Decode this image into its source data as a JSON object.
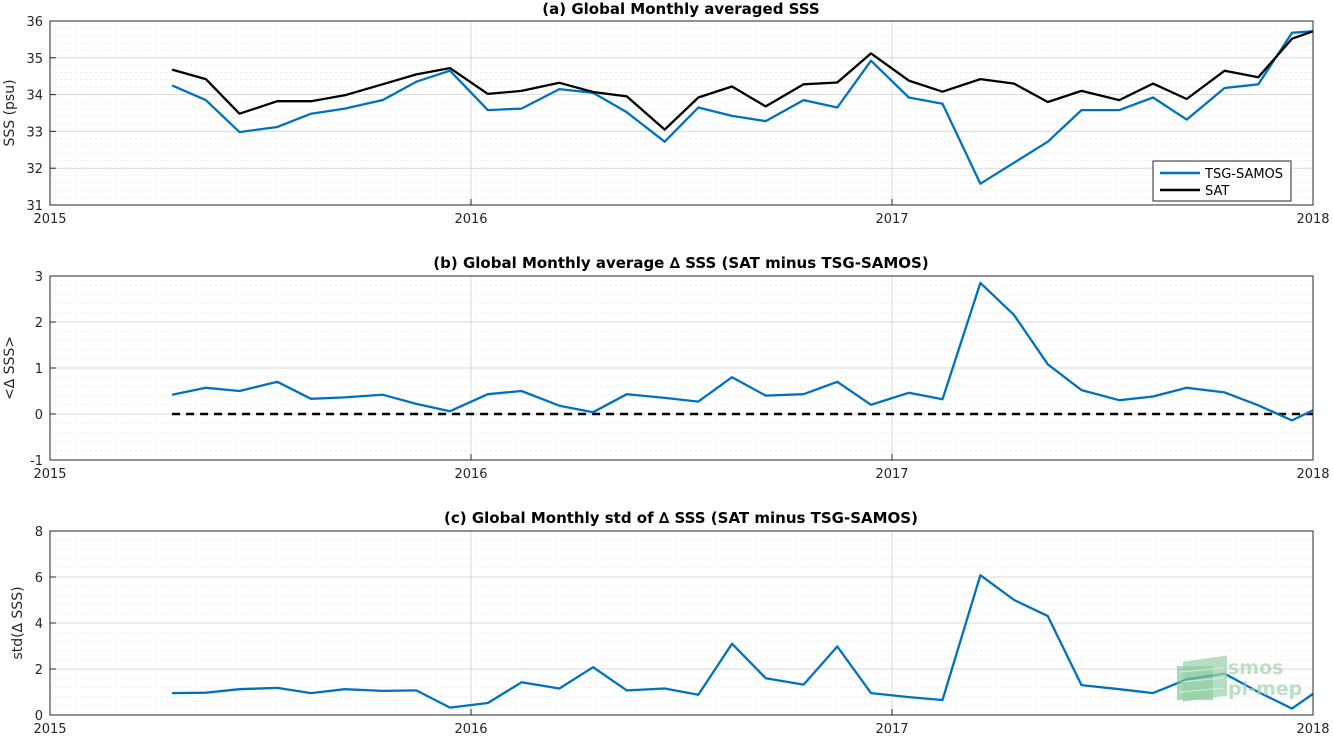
{
  "colors": {
    "tsg": "#0072BD",
    "sat": "#000000",
    "zero_line": "#000000",
    "watermark": "#8cc9a0"
  },
  "watermark": {
    "line1": "smos",
    "line2": "pi-mep"
  },
  "chart_data": [
    {
      "type": "line",
      "title": "(a) Global Monthly averaged SSS",
      "ylabel": "SSS (psu)",
      "xlim": [
        2015,
        2018
      ],
      "ylim": [
        31,
        36
      ],
      "xticks": [
        2015,
        2016,
        2017,
        2018
      ],
      "xtick_labels": [
        "2015",
        "2016",
        "2017",
        "2018"
      ],
      "yticks": [
        31,
        32,
        33,
        34,
        35,
        36
      ],
      "grid": true,
      "legend": "bottom-right",
      "series": [
        {
          "name": "TSG-SAMOS",
          "color": "#0072BD",
          "x": [
            2015.29,
            2015.37,
            2015.45,
            2015.54,
            2015.62,
            2015.7,
            2015.79,
            2015.87,
            2015.95,
            2016.04,
            2016.12,
            2016.21,
            2016.29,
            2016.37,
            2016.46,
            2016.54,
            2016.62,
            2016.7,
            2016.79,
            2016.87,
            2016.95,
            2017.04,
            2017.12,
            2017.21,
            2017.29,
            2017.37,
            2017.45,
            2017.54,
            2017.62,
            2017.7,
            2017.79,
            2017.87,
            2017.95,
            2018.0
          ],
          "y": [
            34.25,
            33.85,
            32.98,
            33.12,
            33.48,
            33.62,
            33.85,
            34.35,
            34.65,
            33.58,
            33.62,
            34.15,
            34.05,
            33.52,
            32.72,
            33.65,
            33.42,
            33.28,
            33.85,
            33.65,
            34.92,
            33.92,
            33.75,
            31.58,
            32.15,
            32.72,
            33.58,
            33.58,
            33.92,
            33.32,
            34.18,
            34.28,
            35.68,
            35.72
          ]
        },
        {
          "name": "SAT",
          "color": "#000000",
          "x": [
            2015.29,
            2015.37,
            2015.45,
            2015.54,
            2015.62,
            2015.7,
            2015.79,
            2015.87,
            2015.95,
            2016.04,
            2016.12,
            2016.21,
            2016.29,
            2016.37,
            2016.46,
            2016.54,
            2016.62,
            2016.7,
            2016.79,
            2016.87,
            2016.95,
            2017.04,
            2017.12,
            2017.21,
            2017.29,
            2017.37,
            2017.45,
            2017.54,
            2017.62,
            2017.7,
            2017.79,
            2017.87,
            2017.95,
            2018.0
          ],
          "y": [
            34.68,
            34.42,
            33.48,
            33.82,
            33.82,
            33.98,
            34.28,
            34.55,
            34.72,
            34.02,
            34.1,
            34.32,
            34.07,
            33.95,
            33.05,
            33.92,
            34.22,
            33.68,
            34.28,
            34.33,
            35.12,
            34.38,
            34.08,
            34.42,
            34.3,
            33.8,
            34.1,
            33.85,
            34.3,
            33.88,
            34.65,
            34.47,
            35.52,
            35.72
          ]
        }
      ]
    },
    {
      "type": "line",
      "title": "(b) Global Monthly average ∆ SSS (SAT minus TSG-SAMOS)",
      "ylabel": "<∆ SSS>",
      "xlim": [
        2015,
        2018
      ],
      "ylim": [
        -1,
        3
      ],
      "xticks": [
        2015,
        2016,
        2017,
        2018
      ],
      "xtick_labels": [
        "2015",
        "2016",
        "2017",
        "2018"
      ],
      "yticks": [
        -1,
        0,
        1,
        2,
        3
      ],
      "grid": true,
      "reference_line": {
        "y": 0,
        "x": [
          2015.29,
          2018.0
        ],
        "style": "dashed"
      },
      "series": [
        {
          "color": "#0072BD",
          "x": [
            2015.29,
            2015.37,
            2015.45,
            2015.54,
            2015.62,
            2015.7,
            2015.79,
            2015.87,
            2015.95,
            2016.04,
            2016.12,
            2016.21,
            2016.29,
            2016.37,
            2016.46,
            2016.54,
            2016.62,
            2016.7,
            2016.79,
            2016.87,
            2016.95,
            2017.04,
            2017.12,
            2017.21,
            2017.29,
            2017.37,
            2017.45,
            2017.54,
            2017.62,
            2017.7,
            2017.79,
            2017.87,
            2017.95,
            2018.0
          ],
          "y": [
            0.42,
            0.57,
            0.5,
            0.7,
            0.33,
            0.36,
            0.42,
            0.22,
            0.06,
            0.43,
            0.5,
            0.18,
            0.04,
            0.43,
            0.35,
            0.27,
            0.8,
            0.4,
            0.43,
            0.7,
            0.2,
            0.46,
            0.32,
            2.85,
            2.15,
            1.08,
            0.52,
            0.3,
            0.38,
            0.57,
            0.47,
            0.19,
            -0.14,
            0.08
          ]
        }
      ]
    },
    {
      "type": "line",
      "title": "(c) Global Monthly std of ∆ SSS (SAT minus TSG-SAMOS)",
      "ylabel": "std(∆ SSS)",
      "xlim": [
        2015,
        2018
      ],
      "ylim": [
        0,
        8
      ],
      "xticks": [
        2015,
        2016,
        2017,
        2018
      ],
      "xtick_labels": [
        "2015",
        "2016",
        "2017",
        "2018"
      ],
      "yticks": [
        0,
        2,
        4,
        6,
        8
      ],
      "grid": true,
      "series": [
        {
          "color": "#0072BD",
          "x": [
            2015.29,
            2015.37,
            2015.45,
            2015.54,
            2015.62,
            2015.7,
            2015.79,
            2015.87,
            2015.95,
            2016.04,
            2016.12,
            2016.21,
            2016.29,
            2016.37,
            2016.46,
            2016.54,
            2016.62,
            2016.7,
            2016.79,
            2016.87,
            2016.95,
            2017.04,
            2017.12,
            2017.21,
            2017.29,
            2017.37,
            2017.45,
            2017.54,
            2017.62,
            2017.7,
            2017.79,
            2017.87,
            2017.95,
            2018.0
          ],
          "y": [
            0.95,
            0.97,
            1.12,
            1.18,
            0.95,
            1.12,
            1.05,
            1.07,
            0.32,
            0.52,
            1.42,
            1.15,
            2.08,
            1.07,
            1.15,
            0.88,
            3.1,
            1.6,
            1.32,
            2.98,
            0.95,
            0.78,
            0.65,
            6.08,
            5.0,
            4.3,
            1.3,
            1.12,
            0.95,
            1.55,
            1.8,
            1.0,
            0.28,
            0.92
          ]
        }
      ]
    }
  ]
}
